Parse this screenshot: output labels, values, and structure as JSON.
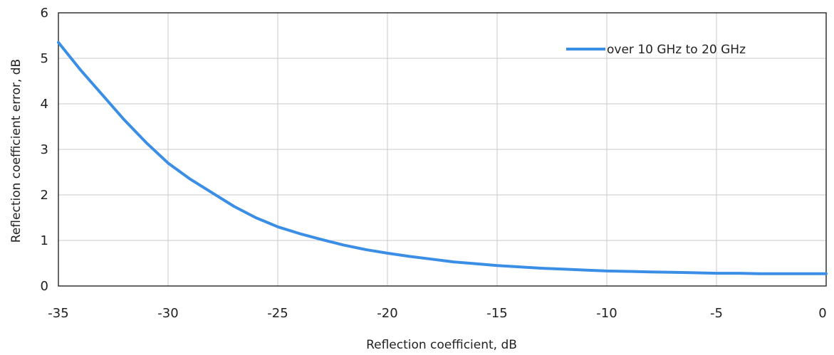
{
  "chart_data": {
    "type": "line",
    "xlabel": "Reflection coefficient, dB",
    "ylabel": "Reflection coefficient error, dB",
    "xlim": [
      -35,
      0
    ],
    "ylim": [
      0,
      6
    ],
    "x_ticks": [
      "-35",
      "-30",
      "-25",
      "-20",
      "-15",
      "-10",
      "-5",
      "0"
    ],
    "y_ticks": [
      "0",
      "1",
      "2",
      "3",
      "4",
      "5",
      "6"
    ],
    "grid": true,
    "legend_position": "top-right",
    "colors": {
      "series": "#3a8ee6",
      "grid": "#c8c8c8",
      "frame": "#333333"
    },
    "series": [
      {
        "name": "over 10 GHz to 20 GHz",
        "x": [
          -35,
          -34,
          -33,
          -32,
          -31,
          -30,
          -29,
          -28,
          -27,
          -26,
          -25,
          -24,
          -23,
          -22,
          -21,
          -20,
          -19,
          -18,
          -17,
          -16,
          -15,
          -14,
          -13,
          -12,
          -11,
          -10,
          -9,
          -8,
          -7,
          -6,
          -5,
          -4,
          -3,
          -2,
          -1,
          0
        ],
        "values": [
          5.35,
          4.75,
          4.2,
          3.65,
          3.15,
          2.7,
          2.35,
          2.05,
          1.75,
          1.5,
          1.3,
          1.15,
          1.02,
          0.9,
          0.8,
          0.72,
          0.65,
          0.59,
          0.53,
          0.49,
          0.45,
          0.42,
          0.39,
          0.37,
          0.35,
          0.33,
          0.32,
          0.31,
          0.3,
          0.29,
          0.28,
          0.28,
          0.27,
          0.27,
          0.27,
          0.27
        ]
      }
    ]
  }
}
